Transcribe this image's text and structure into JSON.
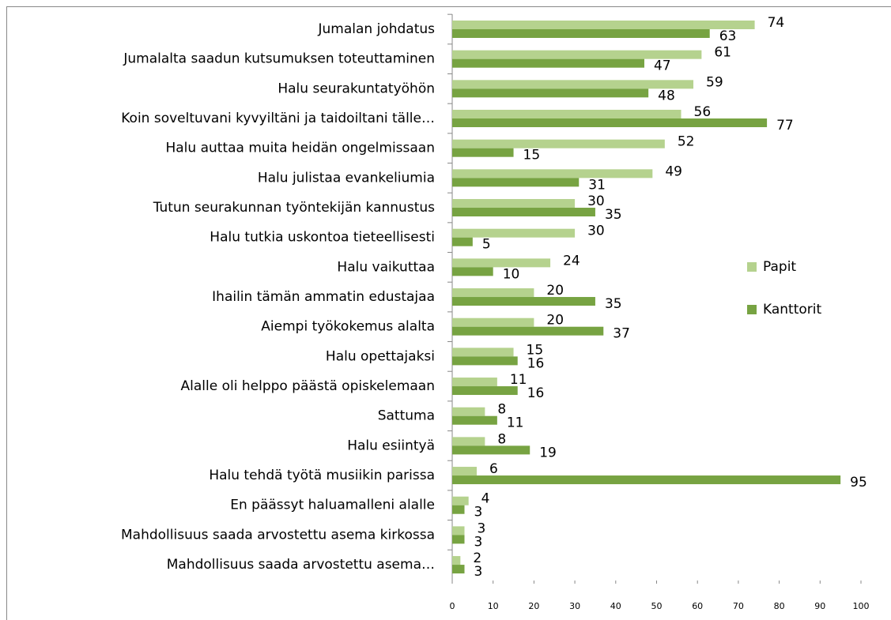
{
  "chart_data": {
    "type": "bar",
    "orientation": "horizontal",
    "categories": [
      "Jumalan johdatus",
      "Jumalalta saadun kutsumuksen toteuttaminen",
      "Halu seurakuntatyöhön",
      "Koin soveltuvani kyvyiltäni ja taidoiltani tälle…",
      "Halu auttaa muita heidän ongelmissaan",
      "Halu julistaa evankeliumia",
      "Tutun seurakunnan työntekijän kannustus",
      "Halu tutkia uskontoa tieteellisesti",
      "Halu vaikuttaa",
      "Ihailin tämän ammatin edustajaa",
      "Aiempi työkokemus alalta",
      "Halu opettajaksi",
      "Alalle oli helppo päästä opiskelemaan",
      "Sattuma",
      "Halu esiintyä",
      "Halu tehdä työtä musiikin parissa",
      "En päässyt haluamalleni alalle",
      "Mahdollisuus saada arvostettu asema kirkossa",
      "Mahdollisuus saada arvostettu asema…"
    ],
    "series": [
      {
        "name": "Papit",
        "color": "#b5d28e",
        "values": [
          74,
          61,
          59,
          56,
          52,
          49,
          30,
          30,
          24,
          20,
          20,
          15,
          11,
          8,
          8,
          6,
          4,
          3,
          2
        ]
      },
      {
        "name": "Kanttorit",
        "color": "#77a342",
        "values": [
          63,
          47,
          48,
          77,
          15,
          31,
          35,
          5,
          10,
          35,
          37,
          16,
          16,
          11,
          19,
          95,
          3,
          3,
          3
        ]
      }
    ],
    "xlim": [
      0,
      100
    ],
    "xticks": [
      0,
      10,
      20,
      30,
      40,
      50,
      60,
      70,
      80,
      90,
      100
    ],
    "legend": "right",
    "grid": false
  }
}
